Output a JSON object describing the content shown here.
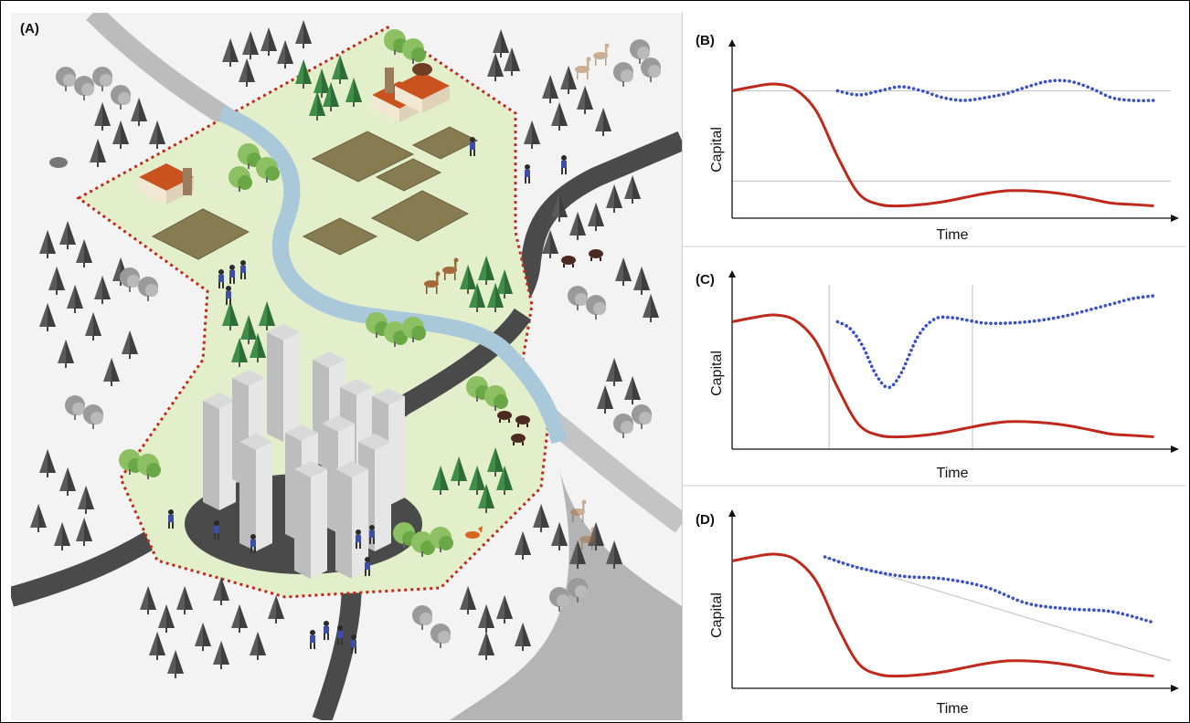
{
  "panels": {
    "A": {
      "label": "(A)"
    },
    "B": {
      "label": "(B)",
      "xlabel": "Time",
      "ylabel": "Capital"
    },
    "C": {
      "label": "(C)",
      "xlabel": "Time",
      "ylabel": "Capital"
    },
    "D": {
      "label": "(D)",
      "xlabel": "Time",
      "ylabel": "Capital"
    }
  },
  "colors": {
    "collapse_line": "#c0281c",
    "resilience_line": "#3b4fc9",
    "reference_line": "#c8c8c8",
    "territory_fill": "#e3efcb",
    "territory_border": "#c0281c",
    "river": "#a9c8da",
    "road": "#555555",
    "field": "#877b52"
  },
  "icons": [
    "forest-icon",
    "city-icon",
    "farm-icon",
    "river-icon",
    "road-icon",
    "deer-icon",
    "bear-icon",
    "boar-icon",
    "fox-icon",
    "people-icon"
  ],
  "chart_data": [
    {
      "type": "line",
      "panel": "B",
      "xlabel": "Time",
      "ylabel": "Capital",
      "series": [
        {
          "style": "solid",
          "color": "#c0281c",
          "x": [
            0,
            5,
            10,
            15,
            20,
            25,
            30,
            35,
            40,
            45,
            50,
            55,
            60,
            65,
            70,
            75,
            80,
            85,
            90,
            95,
            100
          ],
          "y": [
            0.93,
            0.96,
            0.98,
            0.94,
            0.78,
            0.45,
            0.18,
            0.1,
            0.09,
            0.1,
            0.12,
            0.15,
            0.18,
            0.2,
            0.2,
            0.19,
            0.17,
            0.14,
            0.11,
            0.1,
            0.09
          ]
        },
        {
          "style": "dotted",
          "color": "#3b4fc9",
          "x": [
            25,
            30,
            35,
            40,
            45,
            50,
            55,
            60,
            65,
            70,
            75,
            80,
            85,
            90,
            95,
            100
          ],
          "y": [
            0.93,
            0.9,
            0.93,
            0.96,
            0.93,
            0.88,
            0.86,
            0.88,
            0.91,
            0.96,
            1.0,
            1.0,
            0.95,
            0.88,
            0.86,
            0.86
          ]
        }
      ],
      "reference_lines": [
        0.93,
        0.27
      ]
    },
    {
      "type": "line",
      "panel": "C",
      "xlabel": "Time",
      "ylabel": "Capital",
      "series": [
        {
          "style": "solid",
          "color": "#c0281c",
          "x": [
            0,
            5,
            10,
            15,
            20,
            25,
            30,
            35,
            40,
            45,
            50,
            55,
            60,
            65,
            70,
            75,
            80,
            85,
            90,
            95,
            100
          ],
          "y": [
            0.93,
            0.96,
            0.98,
            0.94,
            0.78,
            0.45,
            0.18,
            0.1,
            0.09,
            0.1,
            0.12,
            0.15,
            0.18,
            0.2,
            0.2,
            0.19,
            0.17,
            0.14,
            0.11,
            0.1,
            0.09
          ]
        },
        {
          "style": "dotted",
          "color": "#3b4fc9",
          "x": [
            25,
            28,
            31,
            34,
            37,
            40,
            44,
            48,
            52,
            56,
            60,
            65,
            70,
            75,
            80,
            85,
            90,
            95,
            100
          ],
          "y": [
            0.93,
            0.88,
            0.75,
            0.55,
            0.45,
            0.55,
            0.82,
            0.95,
            0.96,
            0.94,
            0.92,
            0.92,
            0.93,
            0.95,
            0.98,
            1.02,
            1.06,
            1.1,
            1.12
          ]
        }
      ],
      "reference_x": [
        23,
        57
      ]
    },
    {
      "type": "line",
      "panel": "D",
      "xlabel": "Time",
      "ylabel": "Capital",
      "series": [
        {
          "style": "solid",
          "color": "#c0281c",
          "x": [
            0,
            5,
            10,
            15,
            20,
            25,
            30,
            35,
            40,
            45,
            50,
            55,
            60,
            65,
            70,
            75,
            80,
            85,
            90,
            95,
            100
          ],
          "y": [
            0.93,
            0.96,
            0.98,
            0.94,
            0.78,
            0.45,
            0.18,
            0.1,
            0.09,
            0.1,
            0.12,
            0.15,
            0.18,
            0.2,
            0.2,
            0.19,
            0.17,
            0.14,
            0.11,
            0.1,
            0.09
          ]
        },
        {
          "style": "dotted",
          "color": "#3b4fc9",
          "x": [
            22,
            30,
            40,
            50,
            60,
            70,
            80,
            90,
            100
          ],
          "y": [
            0.96,
            0.88,
            0.82,
            0.8,
            0.74,
            0.62,
            0.58,
            0.56,
            0.48
          ]
        }
      ],
      "reference_line_from": [
        22,
        0.96
      ],
      "reference_line_to": [
        104,
        0.2
      ]
    }
  ]
}
